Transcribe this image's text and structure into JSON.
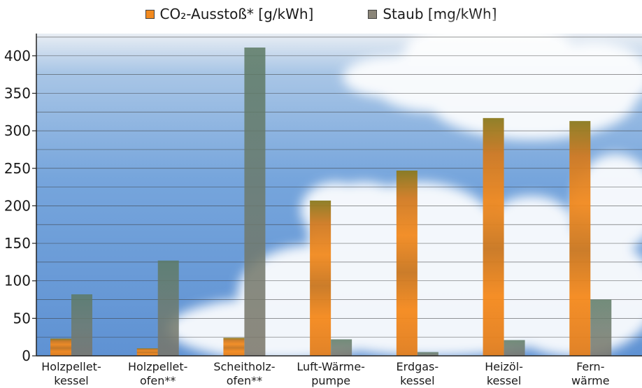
{
  "chart_data": {
    "type": "bar",
    "title": "",
    "xlabel": "",
    "ylabel": "",
    "ylim": [
      0,
      420
    ],
    "yticks": [
      0,
      50,
      100,
      150,
      200,
      250,
      300,
      350,
      400
    ],
    "grid": true,
    "legend_position": "top-center",
    "categories": [
      [
        "Holzpellet-",
        "kessel"
      ],
      [
        "Holzpellet-",
        "ofen**"
      ],
      [
        "Scheitholz-",
        "ofen**"
      ],
      [
        "Luft-Wärme-",
        "pumpe"
      ],
      [
        "Erdgas-",
        "kessel"
      ],
      [
        "Heizöl-",
        "kessel"
      ],
      [
        "Fern-",
        "wärme"
      ]
    ],
    "series": [
      {
        "name": "CO₂-Ausstoß* [g/kWh]",
        "color": "#f28a1f",
        "values": [
          23,
          10,
          24,
          207,
          247,
          317,
          313
        ]
      },
      {
        "name": "Staub [mg/kWh]",
        "color": "#7a7568",
        "values": [
          82,
          127,
          411,
          22,
          5,
          21,
          75
        ]
      }
    ]
  },
  "legend": {
    "items": [
      {
        "label": "CO₂-Ausstoß* [g/kWh]",
        "color": "#f28a1f"
      },
      {
        "label": "Staub [mg/kWh]",
        "color": "#8a8578"
      }
    ]
  }
}
